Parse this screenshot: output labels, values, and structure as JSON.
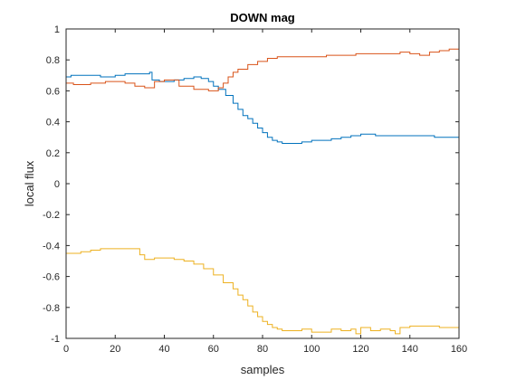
{
  "chart_data": {
    "type": "line",
    "title": "DOWN mag",
    "xlabel": "samples",
    "ylabel": "local flux",
    "xlim": [
      0,
      160
    ],
    "ylim": [
      -1,
      1
    ],
    "xticks": [
      0,
      20,
      40,
      60,
      80,
      100,
      120,
      140,
      160
    ],
    "yticks": [
      -1,
      -0.8,
      -0.6,
      -0.4,
      -0.2,
      0,
      0.2,
      0.4,
      0.6,
      0.8,
      1
    ],
    "xtick_labels": [
      "0",
      "20",
      "40",
      "60",
      "80",
      "100",
      "120",
      "140",
      "160"
    ],
    "ytick_labels": [
      "-1",
      "-0.8",
      "-0.6",
      "-0.4",
      "-0.2",
      "0",
      "0.2",
      "0.4",
      "0.6",
      "0.8",
      "1"
    ],
    "grid": false,
    "legend": null,
    "series": [
      {
        "color": "#0072bd",
        "x": [
          0,
          2,
          8,
          14,
          20,
          24,
          30,
          34,
          35,
          38,
          44,
          48,
          52,
          55,
          58,
          60,
          62,
          65,
          68,
          70,
          72,
          74,
          76,
          78,
          80,
          82,
          84,
          86,
          88,
          90,
          92,
          96,
          100,
          104,
          108,
          112,
          116,
          120,
          126,
          132,
          140,
          146,
          150,
          156,
          160
        ],
        "y": [
          0.69,
          0.7,
          0.7,
          0.69,
          0.7,
          0.71,
          0.71,
          0.72,
          0.67,
          0.66,
          0.67,
          0.68,
          0.69,
          0.68,
          0.66,
          0.63,
          0.61,
          0.57,
          0.52,
          0.48,
          0.44,
          0.42,
          0.39,
          0.36,
          0.33,
          0.3,
          0.28,
          0.27,
          0.26,
          0.26,
          0.26,
          0.27,
          0.28,
          0.28,
          0.29,
          0.3,
          0.31,
          0.32,
          0.31,
          0.31,
          0.31,
          0.31,
          0.3,
          0.3,
          0.3
        ]
      },
      {
        "color": "#d95319",
        "x": [
          0,
          3,
          6,
          10,
          16,
          20,
          24,
          28,
          32,
          36,
          40,
          46,
          52,
          58,
          60,
          62,
          64,
          66,
          68,
          70,
          74,
          78,
          82,
          86,
          90,
          96,
          100,
          106,
          112,
          118,
          124,
          130,
          136,
          140,
          144,
          148,
          152,
          156,
          160
        ],
        "y": [
          0.65,
          0.64,
          0.64,
          0.65,
          0.66,
          0.66,
          0.65,
          0.63,
          0.62,
          0.66,
          0.67,
          0.63,
          0.61,
          0.6,
          0.6,
          0.62,
          0.65,
          0.69,
          0.72,
          0.74,
          0.77,
          0.79,
          0.81,
          0.82,
          0.82,
          0.82,
          0.82,
          0.83,
          0.83,
          0.84,
          0.84,
          0.84,
          0.85,
          0.84,
          0.83,
          0.85,
          0.86,
          0.87,
          0.87
        ]
      },
      {
        "color": "#edb120",
        "x": [
          0,
          3,
          6,
          10,
          14,
          18,
          22,
          26,
          30,
          32,
          36,
          40,
          44,
          48,
          52,
          56,
          60,
          64,
          68,
          70,
          72,
          74,
          76,
          78,
          80,
          82,
          84,
          86,
          88,
          90,
          92,
          96,
          100,
          104,
          108,
          112,
          116,
          118,
          120,
          124,
          128,
          132,
          134,
          136,
          140,
          144,
          148,
          152,
          156,
          160
        ],
        "y": [
          -0.45,
          -0.45,
          -0.44,
          -0.43,
          -0.42,
          -0.42,
          -0.42,
          -0.42,
          -0.46,
          -0.49,
          -0.48,
          -0.48,
          -0.49,
          -0.5,
          -0.52,
          -0.55,
          -0.59,
          -0.64,
          -0.68,
          -0.72,
          -0.75,
          -0.79,
          -0.83,
          -0.86,
          -0.89,
          -0.91,
          -0.93,
          -0.94,
          -0.95,
          -0.95,
          -0.95,
          -0.94,
          -0.96,
          -0.96,
          -0.94,
          -0.95,
          -0.94,
          -0.97,
          -0.93,
          -0.95,
          -0.94,
          -0.95,
          -0.97,
          -0.93,
          -0.92,
          -0.92,
          -0.92,
          -0.93,
          -0.93,
          -0.93
        ]
      }
    ]
  }
}
